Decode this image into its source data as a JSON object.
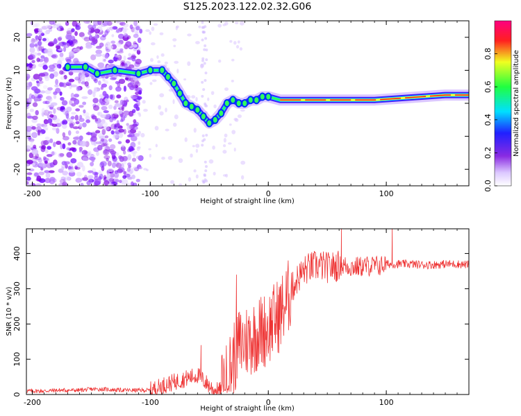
{
  "title": "S125.2023.122.02.32.G06",
  "colors": {
    "snr_line": "#ee3333",
    "axes": "#000000"
  },
  "chart_data": [
    {
      "type": "heatmap",
      "name": "spectrogram",
      "xlabel": "Height of straight line (km)",
      "ylabel": "Frequency (Hz)",
      "xlim": [
        -205,
        170
      ],
      "ylim": [
        -25,
        25
      ],
      "x_ticks": [
        -200,
        -100,
        0,
        100
      ],
      "y_ticks": [
        20,
        10,
        0,
        -10,
        -20
      ],
      "x_tick_labels": [
        "-200",
        "-100",
        "0",
        "100"
      ],
      "y_tick_labels": [
        "20",
        "10",
        "0",
        "-10",
        "-20"
      ],
      "colorbar": {
        "label": "Normalized spectral amplitude",
        "range": [
          0,
          1
        ],
        "ticks": [
          0.0,
          0.2,
          0.4,
          0.6,
          0.8
        ],
        "tick_labels": [
          "0.0",
          "0.2",
          "0.4",
          "0.6",
          "0.8"
        ],
        "colormap": "rainbow (white-purple-blue-cyan-green-yellow-red-magenta)"
      },
      "ridge_frequency_track": {
        "x": [
          -170,
          -155,
          -145,
          -130,
          -110,
          -100,
          -90,
          -85,
          -80,
          -75,
          -70,
          -65,
          -60,
          -55,
          -50,
          -45,
          -40,
          -35,
          -30,
          -25,
          -20,
          -15,
          -10,
          -5,
          0,
          10,
          30,
          60,
          90,
          110,
          130,
          150,
          170
        ],
        "y": [
          11,
          11,
          9,
          10,
          9,
          10,
          10,
          8,
          6,
          3,
          0,
          -1,
          -2,
          -4,
          -6,
          -5,
          -3,
          0,
          1,
          0,
          0,
          1,
          1,
          2,
          2,
          1,
          1,
          1,
          1,
          1.5,
          2,
          2.5,
          2.5
        ]
      }
    },
    {
      "type": "line",
      "name": "snr",
      "xlabel": "Height of straight line (km)",
      "ylabel": "SNR (10 * v/v)",
      "xlim": [
        -205,
        170
      ],
      "ylim": [
        0,
        470
      ],
      "x_ticks": [
        -200,
        -100,
        0,
        100
      ],
      "y_ticks": [
        0,
        100,
        200,
        300,
        400
      ],
      "x_tick_labels": [
        "-200",
        "-100",
        "0",
        "100"
      ],
      "y_tick_labels": [
        "0",
        "100",
        "200",
        "300",
        "400"
      ],
      "series": [
        {
          "x": [
            -205,
            -190,
            -180,
            -170,
            -160,
            -150,
            -140,
            -130,
            -120,
            -110,
            -100,
            -95,
            -90,
            -85,
            -80,
            -75,
            -70,
            -65,
            -60,
            -55,
            -50,
            -45,
            -40,
            -35,
            -30,
            -25,
            -20,
            -15,
            -10,
            -5,
            0,
            5,
            10,
            15,
            20,
            25,
            30,
            35,
            40,
            45,
            50,
            55,
            60,
            65,
            70,
            75,
            80,
            85,
            90,
            95,
            100,
            105,
            110,
            120,
            130,
            140,
            150,
            160,
            170
          ],
          "values": [
            10,
            10,
            12,
            12,
            12,
            15,
            15,
            13,
            12,
            12,
            12,
            18,
            25,
            30,
            35,
            40,
            45,
            50,
            55,
            40,
            25,
            10,
            12,
            40,
            100,
            140,
            150,
            160,
            170,
            180,
            190,
            210,
            230,
            260,
            300,
            330,
            350,
            360,
            365,
            365,
            360,
            362,
            365,
            365,
            362,
            362,
            363,
            365,
            365,
            365,
            370,
            370,
            370,
            370,
            368,
            368,
            370,
            370,
            368
          ]
        }
      ],
      "notable_peaks": [
        {
          "x": -57,
          "y": 140
        },
        {
          "x": -27,
          "y": 340
        },
        {
          "x": 62,
          "y": 470
        },
        {
          "x": 105,
          "y": 470
        }
      ]
    }
  ]
}
